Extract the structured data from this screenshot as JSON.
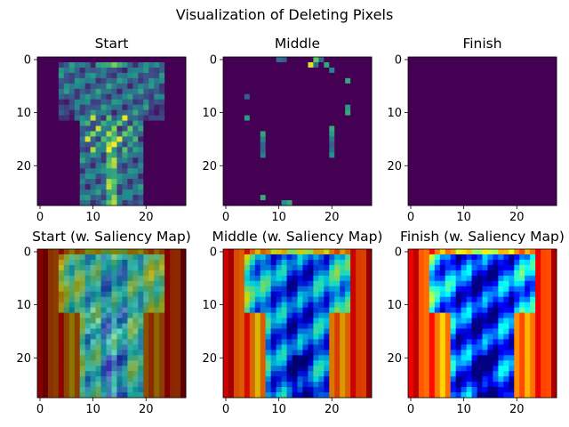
{
  "figure": {
    "suptitle": "Visualization of Deleting Pixels"
  },
  "chart_data": [
    {
      "type": "heatmap",
      "title": "Start",
      "content": "fashion-mnist t-shirt, viridis",
      "colormap": "viridis",
      "xticks": [
        0,
        10,
        20
      ],
      "yticks": [
        0,
        10,
        20
      ],
      "xlim": [
        -0.5,
        27.5
      ],
      "ylim": [
        27.5,
        -0.5
      ]
    },
    {
      "type": "heatmap",
      "title": "Middle",
      "content": "mostly deleted, sparse remaining pixels, viridis",
      "colormap": "viridis",
      "xticks": [
        0,
        10,
        20
      ],
      "yticks": [
        0,
        10,
        20
      ],
      "xlim": [
        -0.5,
        27.5
      ],
      "ylim": [
        27.5,
        -0.5
      ]
    },
    {
      "type": "heatmap",
      "title": "Finish",
      "content": "all pixels deleted (uniform)",
      "colormap": "viridis",
      "xticks": [
        0,
        10,
        20
      ],
      "yticks": [
        0,
        10,
        20
      ],
      "xlim": [
        -0.5,
        27.5
      ],
      "ylim": [
        27.5,
        -0.5
      ]
    },
    {
      "type": "heatmap",
      "title": "Start (w. Saliency Map)",
      "content": "jet saliency overlay",
      "colormap": "jet",
      "xticks": [
        0,
        10,
        20
      ],
      "yticks": [
        0,
        10,
        20
      ],
      "xlim": [
        -0.5,
        27.5
      ],
      "ylim": [
        27.5,
        -0.5
      ]
    },
    {
      "type": "heatmap",
      "title": "Middle (w. Saliency Map)",
      "content": "jet saliency overlay",
      "colormap": "jet",
      "xticks": [
        0,
        10,
        20
      ],
      "yticks": [
        0,
        10,
        20
      ],
      "xlim": [
        -0.5,
        27.5
      ],
      "ylim": [
        27.5,
        -0.5
      ]
    },
    {
      "type": "heatmap",
      "title": "Finish (w. Saliency Map)",
      "content": "jet saliency overlay",
      "colormap": "jet",
      "xticks": [
        0,
        10,
        20
      ],
      "yticks": [
        0,
        10,
        20
      ],
      "xlim": [
        -0.5,
        27.5
      ],
      "ylim": [
        27.5,
        -0.5
      ]
    }
  ]
}
